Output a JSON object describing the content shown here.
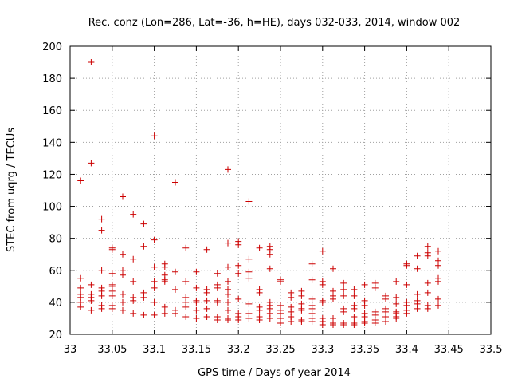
{
  "chart_data": {
    "type": "scatter",
    "title": "Rec. conz (Lon=286, Lat=-36, h=HE), days 032-033, 2014, window 002",
    "xlabel": "GPS time / Days of year 2014",
    "ylabel": "STEC from uqrg / TECUs",
    "xlim": [
      33,
      33.5
    ],
    "ylim": [
      20,
      200
    ],
    "xticks": [
      "33",
      "33.05",
      "33.1",
      "33.15",
      "33.2",
      "33.25",
      "33.3",
      "33.35",
      "33.4",
      "33.45",
      "33.5"
    ],
    "yticks": [
      "20",
      "40",
      "60",
      "80",
      "100",
      "120",
      "140",
      "160",
      "180",
      "200"
    ],
    "grid": true,
    "marker": "plus",
    "marker_color": "#cc0000",
    "series": [
      {
        "name": "",
        "points": [
          [
            33.0125,
            116
          ],
          [
            33.0125,
            55
          ],
          [
            33.0125,
            49
          ],
          [
            33.0125,
            45
          ],
          [
            33.0125,
            43
          ],
          [
            33.0125,
            40
          ],
          [
            33.0125,
            37
          ],
          [
            33.025,
            190
          ],
          [
            33.025,
            127
          ],
          [
            33.025,
            51
          ],
          [
            33.025,
            45
          ],
          [
            33.025,
            43
          ],
          [
            33.025,
            41
          ],
          [
            33.025,
            35
          ],
          [
            33.0375,
            92
          ],
          [
            33.0375,
            85
          ],
          [
            33.0375,
            60
          ],
          [
            33.0375,
            49
          ],
          [
            33.0375,
            47
          ],
          [
            33.0375,
            44
          ],
          [
            33.0375,
            38
          ],
          [
            33.0375,
            36
          ],
          [
            33.05,
            74
          ],
          [
            33.05,
            73
          ],
          [
            33.05,
            58
          ],
          [
            33.05,
            51
          ],
          [
            33.05,
            50
          ],
          [
            33.05,
            47
          ],
          [
            33.05,
            44
          ],
          [
            33.05,
            38
          ],
          [
            33.05,
            36
          ],
          [
            33.0625,
            106
          ],
          [
            33.0625,
            70
          ],
          [
            33.0625,
            60
          ],
          [
            33.0625,
            57
          ],
          [
            33.0625,
            45
          ],
          [
            33.0625,
            40
          ],
          [
            33.0625,
            35
          ],
          [
            33.075,
            95
          ],
          [
            33.075,
            67
          ],
          [
            33.075,
            53
          ],
          [
            33.075,
            43
          ],
          [
            33.075,
            41
          ],
          [
            33.075,
            33
          ],
          [
            33.0875,
            89
          ],
          [
            33.0875,
            75
          ],
          [
            33.0875,
            46
          ],
          [
            33.0875,
            43
          ],
          [
            33.0875,
            32
          ],
          [
            33.1,
            144
          ],
          [
            33.1,
            79
          ],
          [
            33.1,
            62
          ],
          [
            33.1,
            53
          ],
          [
            33.1,
            49
          ],
          [
            33.1,
            40
          ],
          [
            33.1,
            32
          ],
          [
            33.1125,
            64
          ],
          [
            33.1125,
            62
          ],
          [
            33.1125,
            57
          ],
          [
            33.1125,
            54
          ],
          [
            33.1125,
            53
          ],
          [
            33.1125,
            37
          ],
          [
            33.1125,
            33
          ],
          [
            33.125,
            115
          ],
          [
            33.125,
            59
          ],
          [
            33.125,
            48
          ],
          [
            33.125,
            35
          ],
          [
            33.125,
            33
          ],
          [
            33.1375,
            74
          ],
          [
            33.1375,
            53
          ],
          [
            33.1375,
            43
          ],
          [
            33.1375,
            40
          ],
          [
            33.1375,
            37
          ],
          [
            33.1375,
            31
          ],
          [
            33.15,
            59
          ],
          [
            33.15,
            49
          ],
          [
            33.15,
            41
          ],
          [
            33.15,
            40
          ],
          [
            33.15,
            35
          ],
          [
            33.15,
            30
          ],
          [
            33.1625,
            73
          ],
          [
            33.1625,
            48
          ],
          [
            33.1625,
            46
          ],
          [
            33.1625,
            41
          ],
          [
            33.1625,
            36
          ],
          [
            33.1625,
            31
          ],
          [
            33.175,
            58
          ],
          [
            33.175,
            51
          ],
          [
            33.175,
            49
          ],
          [
            33.175,
            41
          ],
          [
            33.175,
            40
          ],
          [
            33.175,
            31
          ],
          [
            33.175,
            29
          ],
          [
            33.1875,
            123
          ],
          [
            33.1875,
            77
          ],
          [
            33.1875,
            62
          ],
          [
            33.1875,
            53
          ],
          [
            33.1875,
            48
          ],
          [
            33.1875,
            45
          ],
          [
            33.1875,
            40
          ],
          [
            33.1875,
            35
          ],
          [
            33.1875,
            30
          ],
          [
            33.1875,
            29
          ],
          [
            33.2,
            78
          ],
          [
            33.2,
            76
          ],
          [
            33.2,
            63
          ],
          [
            33.2,
            58
          ],
          [
            33.2,
            42
          ],
          [
            33.2,
            33
          ],
          [
            33.2,
            31
          ],
          [
            33.2,
            29
          ],
          [
            33.2125,
            103
          ],
          [
            33.2125,
            67
          ],
          [
            33.2125,
            59
          ],
          [
            33.2125,
            55
          ],
          [
            33.2125,
            39
          ],
          [
            33.2125,
            33
          ],
          [
            33.2125,
            30
          ],
          [
            33.225,
            74
          ],
          [
            33.225,
            48
          ],
          [
            33.225,
            46
          ],
          [
            33.225,
            37
          ],
          [
            33.225,
            35
          ],
          [
            33.225,
            31
          ],
          [
            33.225,
            29
          ],
          [
            33.2375,
            75
          ],
          [
            33.2375,
            73
          ],
          [
            33.2375,
            70
          ],
          [
            33.2375,
            61
          ],
          [
            33.2375,
            40
          ],
          [
            33.2375,
            38
          ],
          [
            33.2375,
            36
          ],
          [
            33.2375,
            33
          ],
          [
            33.2375,
            30
          ],
          [
            33.25,
            54
          ],
          [
            33.25,
            53
          ],
          [
            33.25,
            38
          ],
          [
            33.25,
            35
          ],
          [
            33.25,
            33
          ],
          [
            33.25,
            30
          ],
          [
            33.25,
            27
          ],
          [
            33.2625,
            46
          ],
          [
            33.2625,
            43
          ],
          [
            33.2625,
            37
          ],
          [
            33.2625,
            34
          ],
          [
            33.2625,
            31
          ],
          [
            33.2625,
            28
          ],
          [
            33.275,
            47
          ],
          [
            33.275,
            44
          ],
          [
            33.275,
            39
          ],
          [
            33.275,
            36
          ],
          [
            33.275,
            35
          ],
          [
            33.275,
            29
          ],
          [
            33.275,
            28
          ],
          [
            33.2875,
            64
          ],
          [
            33.2875,
            54
          ],
          [
            33.2875,
            42
          ],
          [
            33.2875,
            38
          ],
          [
            33.2875,
            36
          ],
          [
            33.2875,
            33
          ],
          [
            33.2875,
            30
          ],
          [
            33.2875,
            28
          ],
          [
            33.3,
            72
          ],
          [
            33.3,
            53
          ],
          [
            33.3,
            51
          ],
          [
            33.3,
            41
          ],
          [
            33.3,
            40
          ],
          [
            33.3,
            30
          ],
          [
            33.3,
            28
          ],
          [
            33.3,
            26
          ],
          [
            33.3125,
            61
          ],
          [
            33.3125,
            47
          ],
          [
            33.3125,
            44
          ],
          [
            33.3125,
            42
          ],
          [
            33.3125,
            30
          ],
          [
            33.3125,
            27
          ],
          [
            33.3125,
            26
          ],
          [
            33.325,
            52
          ],
          [
            33.325,
            48
          ],
          [
            33.325,
            44
          ],
          [
            33.325,
            36
          ],
          [
            33.325,
            34
          ],
          [
            33.325,
            27
          ],
          [
            33.325,
            26
          ],
          [
            33.3375,
            48
          ],
          [
            33.3375,
            44
          ],
          [
            33.3375,
            38
          ],
          [
            33.3375,
            36
          ],
          [
            33.3375,
            31
          ],
          [
            33.3375,
            27
          ],
          [
            33.3375,
            26
          ],
          [
            33.35,
            51
          ],
          [
            33.35,
            41
          ],
          [
            33.35,
            38
          ],
          [
            33.35,
            33
          ],
          [
            33.35,
            31
          ],
          [
            33.35,
            28
          ],
          [
            33.35,
            27
          ],
          [
            33.3625,
            52
          ],
          [
            33.3625,
            49
          ],
          [
            33.3625,
            34
          ],
          [
            33.3625,
            32
          ],
          [
            33.3625,
            29
          ],
          [
            33.3625,
            27
          ],
          [
            33.375,
            44
          ],
          [
            33.375,
            42
          ],
          [
            33.375,
            36
          ],
          [
            33.375,
            34
          ],
          [
            33.375,
            31
          ],
          [
            33.375,
            28
          ],
          [
            33.3875,
            53
          ],
          [
            33.3875,
            43
          ],
          [
            33.3875,
            39
          ],
          [
            33.3875,
            34
          ],
          [
            33.3875,
            33
          ],
          [
            33.3875,
            31
          ],
          [
            33.3875,
            30
          ],
          [
            33.4,
            64
          ],
          [
            33.4,
            63
          ],
          [
            33.4,
            51
          ],
          [
            33.4,
            40
          ],
          [
            33.4,
            38
          ],
          [
            33.4,
            35
          ],
          [
            33.4,
            33
          ],
          [
            33.4125,
            69
          ],
          [
            33.4125,
            61
          ],
          [
            33.4125,
            45
          ],
          [
            33.4125,
            41
          ],
          [
            33.4125,
            39
          ],
          [
            33.4125,
            36
          ],
          [
            33.425,
            75
          ],
          [
            33.425,
            71
          ],
          [
            33.425,
            69
          ],
          [
            33.425,
            52
          ],
          [
            33.425,
            46
          ],
          [
            33.425,
            38
          ],
          [
            33.425,
            36
          ],
          [
            33.4375,
            72
          ],
          [
            33.4375,
            66
          ],
          [
            33.4375,
            63
          ],
          [
            33.4375,
            55
          ],
          [
            33.4375,
            53
          ],
          [
            33.4375,
            42
          ],
          [
            33.4375,
            38
          ]
        ]
      }
    ]
  }
}
